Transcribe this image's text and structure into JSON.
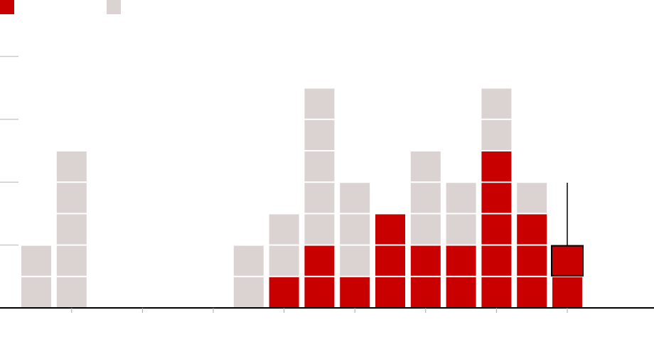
{
  "chart_data": {
    "type": "bar",
    "stacked": true,
    "unit_blocks": true,
    "categories": [
      "",
      "",
      "",
      "",
      "",
      "",
      "",
      "",
      "",
      "",
      "",
      "",
      "",
      "",
      "",
      ""
    ],
    "series": [
      {
        "values": [
          0,
          0,
          0,
          0,
          0,
          0,
          0,
          1,
          2,
          1,
          3,
          2,
          2,
          5,
          3,
          2
        ],
        "color": "#c80000"
      },
      {
        "values": [
          2,
          5,
          0,
          0,
          0,
          0,
          2,
          2,
          5,
          3,
          0,
          3,
          2,
          2,
          1,
          0
        ],
        "color": "#dbd3d1"
      }
    ],
    "highlight": {
      "index": 15,
      "block": 2,
      "outline_color": "#000000"
    },
    "ylim": [
      0,
      9.7
    ],
    "y_gridlines": [
      2,
      4,
      6,
      8
    ],
    "x_major_ticks_every": 2,
    "xlabel": "",
    "ylabel": "",
    "legend": {
      "placement": "top-left"
    },
    "grid": true
  }
}
